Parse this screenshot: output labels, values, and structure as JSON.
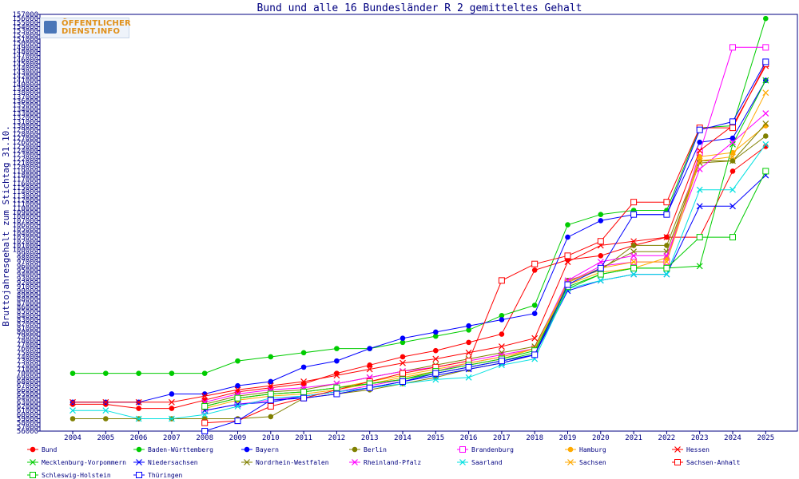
{
  "logo": {
    "line1": "ÖFFENTLICHER",
    "line2": "DIENST.INFO"
  },
  "chart_data": {
    "type": "line",
    "title": "Bund und alle 16 Bundesländer R 2 gemitteltes Gehalt",
    "xlabel": "",
    "ylabel": "Bruttojahresgehalt zum Stichtag 31.10.",
    "categories": [
      "2004",
      "2005",
      "2006",
      "2007",
      "2008",
      "2009",
      "2010",
      "2011",
      "2012",
      "2013",
      "2014",
      "2015",
      "2016",
      "2017",
      "2018",
      "2019",
      "2020",
      "2021",
      "2022",
      "2023",
      "2024",
      "2025"
    ],
    "ylim": [
      56000,
      157000
    ],
    "ytick_step": 1000,
    "grid": false,
    "legend_position": "bottom",
    "series": [
      {
        "name": "Bund",
        "color": "#ff0000",
        "marker": "dot",
        "values": [
          62500,
          62500,
          61500,
          61500,
          63500,
          65500,
          66500,
          67500,
          70000,
          72000,
          74000,
          75500,
          77500,
          79500,
          95000,
          97500,
          98500,
          101000,
          103000,
          103000,
          119000,
          125000
        ]
      },
      {
        "name": "Baden-Württemberg",
        "color": "#00cc00",
        "marker": "dot",
        "values": [
          70000,
          70000,
          70000,
          70000,
          70000,
          73000,
          74000,
          75000,
          76000,
          76000,
          77500,
          79000,
          80500,
          84000,
          86500,
          106000,
          108500,
          109500,
          109500,
          129500,
          130000,
          156000
        ]
      },
      {
        "name": "Bayern",
        "color": "#0000ff",
        "marker": "dot",
        "values": [
          63000,
          63000,
          63000,
          65000,
          65000,
          67000,
          68000,
          71500,
          73000,
          76000,
          78500,
          80000,
          81500,
          83000,
          84500,
          103000,
          107000,
          108500,
          108500,
          126000,
          127000,
          141000
        ]
      },
      {
        "name": "Berlin",
        "color": "#808000",
        "marker": "dot",
        "values": [
          59000,
          59000,
          59000,
          59000,
          59000,
          59000,
          59500,
          64000,
          65000,
          66000,
          67500,
          69000,
          71000,
          72500,
          74500,
          92500,
          95000,
          101000,
          101000,
          121500,
          121500,
          127500
        ]
      },
      {
        "name": "Brandenburg",
        "color": "#ff00ff",
        "marker": "square",
        "values": [
          null,
          null,
          null,
          null,
          61000,
          62500,
          63500,
          64500,
          65500,
          67000,
          68500,
          70500,
          72500,
          74000,
          76000,
          92000,
          96000,
          97000,
          97000,
          123500,
          149000,
          149000
        ]
      },
      {
        "name": "Hamburg",
        "color": "#ffaa00",
        "marker": "dot",
        "values": [
          null,
          null,
          null,
          null,
          61500,
          63500,
          64500,
          65000,
          66000,
          67500,
          69000,
          70500,
          72000,
          73500,
          76000,
          91500,
          94500,
          95500,
          98000,
          122500,
          123500,
          130000
        ]
      },
      {
        "name": "Hessen",
        "color": "#ff0000",
        "marker": "x",
        "values": [
          63000,
          63000,
          63000,
          63000,
          64500,
          66000,
          67000,
          68000,
          69500,
          71000,
          72500,
          73500,
          75000,
          76500,
          78500,
          97000,
          101000,
          102000,
          103000,
          124000,
          130000,
          144500
        ]
      },
      {
        "name": "Mecklenburg-Vorpommern",
        "color": "#00cc00",
        "marker": "x",
        "values": [
          null,
          null,
          null,
          null,
          62000,
          64000,
          65000,
          65500,
          66500,
          67500,
          68500,
          70000,
          71500,
          73000,
          75000,
          90500,
          94000,
          95500,
          95500,
          96000,
          125500,
          141000
        ]
      },
      {
        "name": "Niedersachsen",
        "color": "#0000ff",
        "marker": "x",
        "values": [
          null,
          null,
          null,
          null,
          61000,
          62500,
          63000,
          64500,
          65500,
          66500,
          68000,
          69500,
          71000,
          72500,
          74500,
          90000,
          92500,
          94000,
          94000,
          110500,
          110500,
          118000
        ]
      },
      {
        "name": "Nordrhein-Westfalen",
        "color": "#808000",
        "marker": "x",
        "values": [
          null,
          null,
          null,
          null,
          62500,
          64500,
          65500,
          66000,
          67500,
          69000,
          70500,
          72000,
          73500,
          75000,
          76500,
          92000,
          95500,
          99500,
          99500,
          121000,
          121500,
          130500
        ]
      },
      {
        "name": "Rheinland-Pfalz",
        "color": "#ff00ff",
        "marker": "x",
        "values": [
          null,
          null,
          null,
          null,
          63000,
          65000,
          66000,
          66500,
          67500,
          69000,
          70500,
          71500,
          73000,
          74500,
          76000,
          92500,
          97000,
          98500,
          98500,
          119500,
          126000,
          133000
        ]
      },
      {
        "name": "Saarland",
        "color": "#00e0e0",
        "marker": "x",
        "values": [
          61000,
          61000,
          59000,
          59000,
          60000,
          62000,
          64000,
          64500,
          65500,
          66500,
          67500,
          68500,
          69000,
          72000,
          73500,
          90500,
          92500,
          94000,
          94000,
          114500,
          114500,
          125500
        ]
      },
      {
        "name": "Sachsen",
        "color": "#ffaa00",
        "marker": "x",
        "values": [
          null,
          null,
          null,
          null,
          62000,
          64000,
          65000,
          65500,
          66500,
          68000,
          69500,
          71000,
          72500,
          74000,
          76000,
          92000,
          95500,
          97000,
          97000,
          121500,
          122500,
          138000
        ]
      },
      {
        "name": "Sachsen-Anhalt",
        "color": "#ff0000",
        "marker": "square",
        "values": [
          null,
          null,
          null,
          null,
          58000,
          58500,
          62000,
          64000,
          66000,
          68000,
          70000,
          71500,
          73000,
          92500,
          96500,
          98500,
          102000,
          111500,
          111500,
          129500,
          129500,
          145000
        ]
      },
      {
        "name": "Schleswig-Holstein",
        "color": "#00cc00",
        "marker": "square",
        "values": [
          null,
          null,
          null,
          null,
          62000,
          64000,
          65000,
          65500,
          66500,
          67500,
          68500,
          70500,
          72000,
          73500,
          75500,
          91000,
          94000,
          95500,
          95500,
          103000,
          103000,
          119000
        ]
      },
      {
        "name": "Thüringen",
        "color": "#0000ff",
        "marker": "square",
        "values": [
          null,
          null,
          null,
          null,
          56000,
          58500,
          63500,
          64000,
          65000,
          66500,
          68000,
          70000,
          71500,
          73000,
          74500,
          91500,
          95500,
          108500,
          108500,
          129000,
          131000,
          145500
        ]
      }
    ]
  }
}
